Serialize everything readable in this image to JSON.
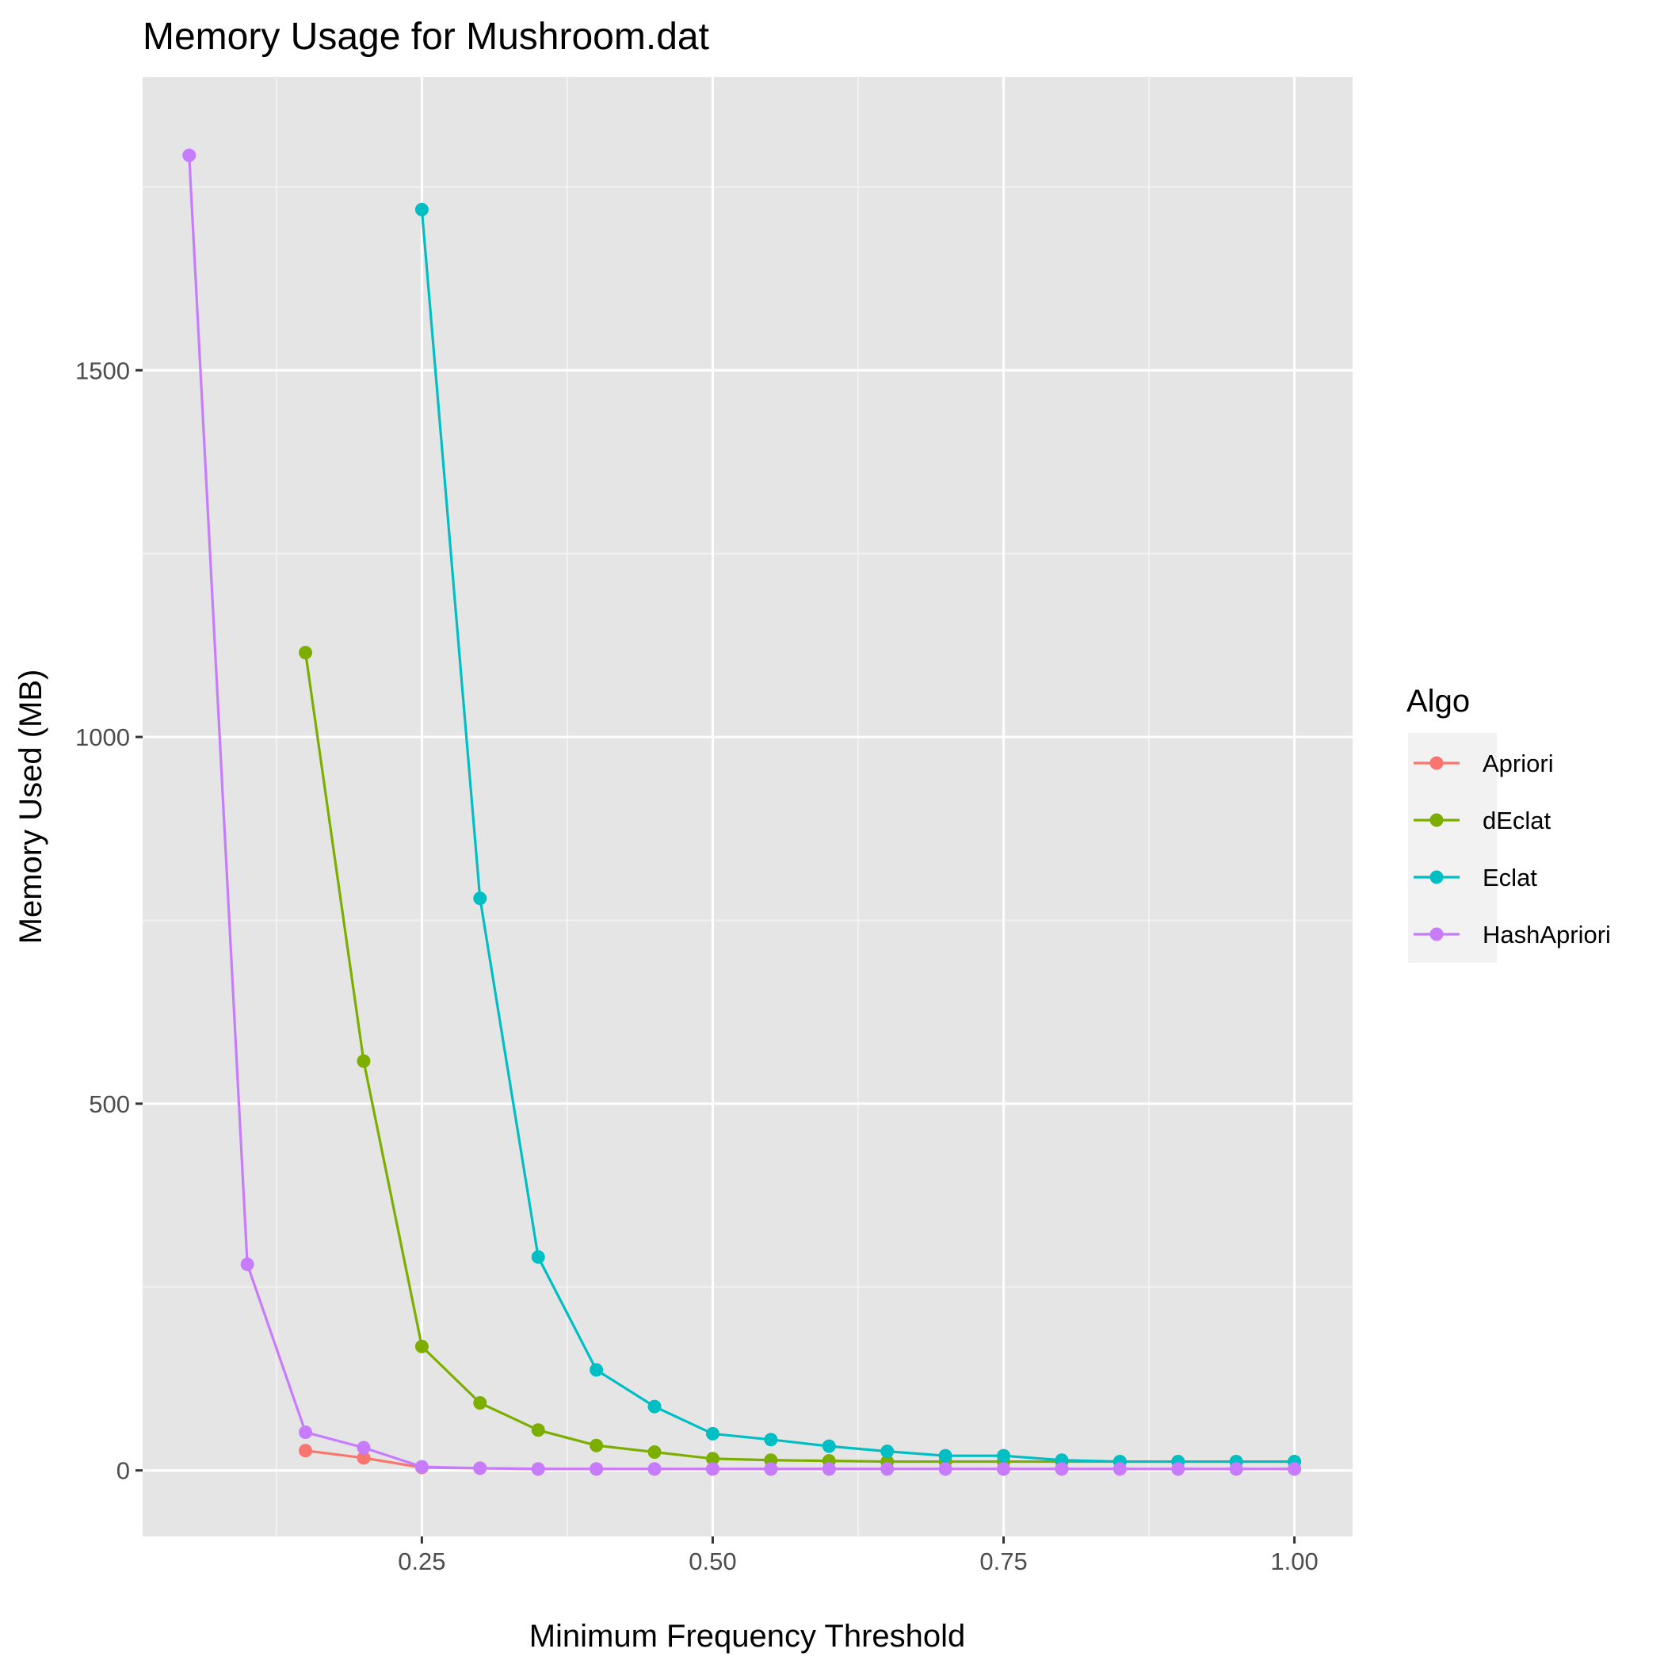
{
  "chart_data": {
    "type": "line",
    "title": "Memory Usage for Mushroom.dat",
    "xlabel": "Minimum Frequency Threshold",
    "ylabel": "Memory Used (MB)",
    "xlim": [
      0.01,
      1.05
    ],
    "ylim": [
      -90,
      1900
    ],
    "x_ticks": [
      0.25,
      0.5,
      0.75,
      1.0
    ],
    "x_tick_labels": [
      "0.25",
      "0.50",
      "0.75",
      "1.00"
    ],
    "y_ticks": [
      0,
      500,
      1000,
      1500
    ],
    "y_tick_labels": [
      "0",
      "500",
      "1000",
      "1500"
    ],
    "grid": true,
    "legend": {
      "title": "Algo",
      "position": "right"
    },
    "series": [
      {
        "name": "Apriori",
        "color": "#F8766D",
        "x": [
          0.15,
          0.2,
          0.25,
          0.3,
          0.35,
          0.4,
          0.45,
          0.5,
          0.55,
          0.6,
          0.65,
          0.7,
          0.75,
          0.8,
          0.85,
          0.9,
          0.95,
          1.0
        ],
        "values": [
          27,
          17,
          4,
          3,
          2,
          2,
          2,
          2,
          2,
          2,
          2,
          2,
          2,
          2,
          2,
          2,
          2,
          2
        ]
      },
      {
        "name": "dEclat",
        "color": "#7CAE00",
        "x": [
          0.15,
          0.2,
          0.25,
          0.3,
          0.35,
          0.4,
          0.45,
          0.5,
          0.55,
          0.6,
          0.65,
          0.7,
          0.75,
          0.8,
          0.85,
          0.9,
          0.95,
          1.0
        ],
        "values": [
          1115,
          558,
          169,
          92,
          55,
          34,
          25,
          16,
          14,
          13,
          12,
          12,
          12,
          12,
          12,
          12,
          12,
          12
        ]
      },
      {
        "name": "Eclat",
        "color": "#00BFC4",
        "x": [
          0.25,
          0.3,
          0.35,
          0.4,
          0.45,
          0.5,
          0.55,
          0.6,
          0.65,
          0.7,
          0.75,
          0.8,
          0.85,
          0.9,
          0.95,
          1.0
        ],
        "values": [
          1719,
          780,
          291,
          137,
          87,
          50,
          42,
          33,
          26,
          20,
          20,
          14,
          12,
          12,
          12,
          12
        ]
      },
      {
        "name": "HashApriori",
        "color": "#C77CFF",
        "x": [
          0.05,
          0.1,
          0.15,
          0.2,
          0.25,
          0.3,
          0.35,
          0.4,
          0.45,
          0.5,
          0.55,
          0.6,
          0.65,
          0.7,
          0.75,
          0.8,
          0.85,
          0.9,
          0.95,
          1.0
        ],
        "values": [
          1793,
          281,
          52,
          31,
          5,
          3,
          2,
          2,
          2,
          2,
          2,
          2,
          2,
          2,
          2,
          2,
          2,
          2,
          2,
          2
        ]
      }
    ]
  }
}
